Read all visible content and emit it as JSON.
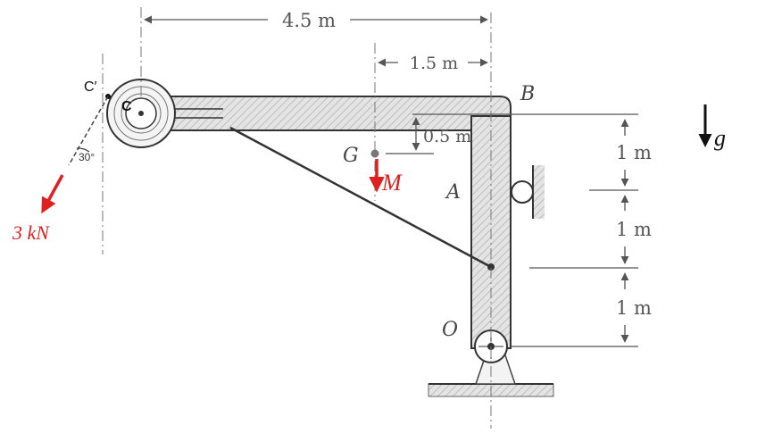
{
  "dimensions": {
    "overall_width": "4.5 m",
    "offset_width": "1.5 m",
    "g_offset": "0.5 m",
    "segment_1": "1 m",
    "segment_2": "1 m",
    "segment_3": "1 m"
  },
  "points": {
    "B": "B",
    "G": "G",
    "A": "A",
    "O": "O",
    "C": "C",
    "C_prime": "C′"
  },
  "loads": {
    "cable_force": "3 kN",
    "cable_angle": "30°",
    "moment_label": "M",
    "gravity_label": "g"
  },
  "colors": {
    "load_red": "#e02020",
    "member_fill": "#dcdcdc",
    "line": "#333333"
  }
}
